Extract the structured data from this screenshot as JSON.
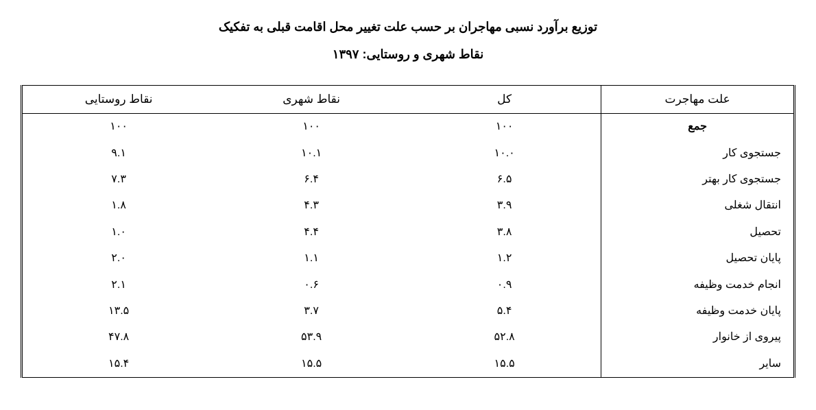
{
  "title": {
    "line1": "توزیع برآورد نسبی مهاجران بر حسب علت تغییر محل اقامت قبلی به تفکیک",
    "line2": "نقاط شهری و روستایی: ۱۳۹۷"
  },
  "table": {
    "type": "table",
    "columns": [
      {
        "key": "rural",
        "label": "نقاط روستایی",
        "align": "center"
      },
      {
        "key": "urban",
        "label": "نقاط شهری",
        "align": "center"
      },
      {
        "key": "total",
        "label": "کل",
        "align": "center"
      },
      {
        "key": "reason",
        "label": "علت مهاجرت",
        "align": "right",
        "has_left_border": true
      }
    ],
    "rows": [
      {
        "reason": "جمع",
        "total": "۱۰۰",
        "urban": "۱۰۰",
        "rural": "۱۰۰",
        "is_total": true
      },
      {
        "reason": "جستجوی کار",
        "total": "۱۰.۰",
        "urban": "۱۰.۱",
        "rural": "۹.۱"
      },
      {
        "reason": "جستجوی کار بهتر",
        "total": "۶.۵",
        "urban": "۶.۴",
        "rural": "۷.۳"
      },
      {
        "reason": "انتقال شغلی",
        "total": "۳.۹",
        "urban": "۴.۳",
        "rural": "۱.۸"
      },
      {
        "reason": "تحصیل",
        "total": "۳.۸",
        "urban": "۴.۴",
        "rural": "۱.۰"
      },
      {
        "reason": "پایان تحصیل",
        "total": "۱.۲",
        "urban": "۱.۱",
        "rural": "۲.۰"
      },
      {
        "reason": "انجام خدمت وظیفه",
        "total": "۰.۹",
        "urban": "۰.۶",
        "rural": "۲.۱"
      },
      {
        "reason": "پایان خدمت وظیفه",
        "total": "۵.۴",
        "urban": "۳.۷",
        "rural": "۱۳.۵"
      },
      {
        "reason": "پیروی از خانوار",
        "total": "۵۲.۸",
        "urban": "۵۳.۹",
        "rural": "۴۷.۸"
      },
      {
        "reason": "سایر",
        "total": "۱۵.۵",
        "urban": "۱۵.۵",
        "rural": "۱۵.۴"
      }
    ],
    "styling": {
      "background_color": "#ffffff",
      "text_color": "#000000",
      "border_color": "#000000",
      "outer_border_style": "double",
      "title_fontsize": 18,
      "title_fontweight": "bold",
      "header_fontsize": 17,
      "body_fontsize": 16,
      "font_family": "Tahoma"
    }
  }
}
